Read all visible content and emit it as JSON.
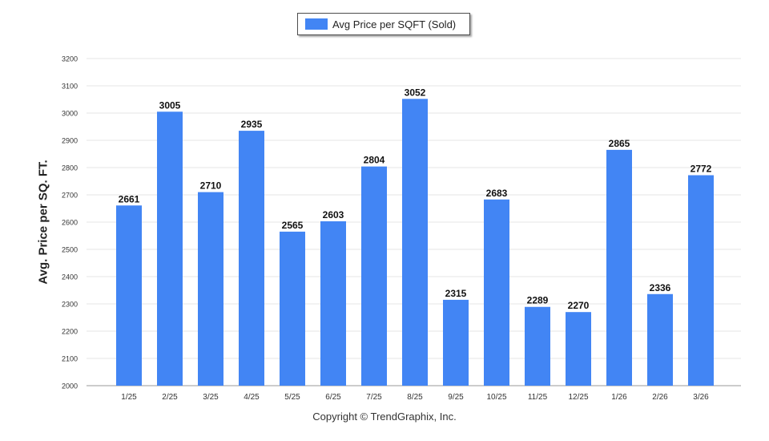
{
  "legend": {
    "label": "Avg Price per SQFT (Sold)",
    "color": "#4285f4"
  },
  "footer": {
    "copyright": "Copyright © TrendGraphix, Inc."
  },
  "chart_data": {
    "type": "bar",
    "ylabel": "Avg. Price per SQ. FT.",
    "xlabel": "",
    "ylim": [
      2000,
      3200
    ],
    "yticks": [
      2000,
      2100,
      2200,
      2300,
      2400,
      2500,
      2600,
      2700,
      2800,
      2900,
      3000,
      3100,
      3200
    ],
    "grid": true,
    "legend_position": "top-center",
    "bar_color": "#4285f4",
    "categories": [
      "1/25",
      "2/25",
      "3/25",
      "4/25",
      "5/25",
      "6/25",
      "7/25",
      "8/25",
      "9/25",
      "10/25",
      "11/25",
      "12/25",
      "1/26",
      "2/26",
      "3/26"
    ],
    "series": [
      {
        "name": "Avg Price per SQFT (Sold)",
        "values": [
          2661,
          3005,
          2710,
          2935,
          2565,
          2603,
          2804,
          3052,
          2315,
          2683,
          2289,
          2270,
          2865,
          2336,
          2772
        ]
      }
    ]
  }
}
